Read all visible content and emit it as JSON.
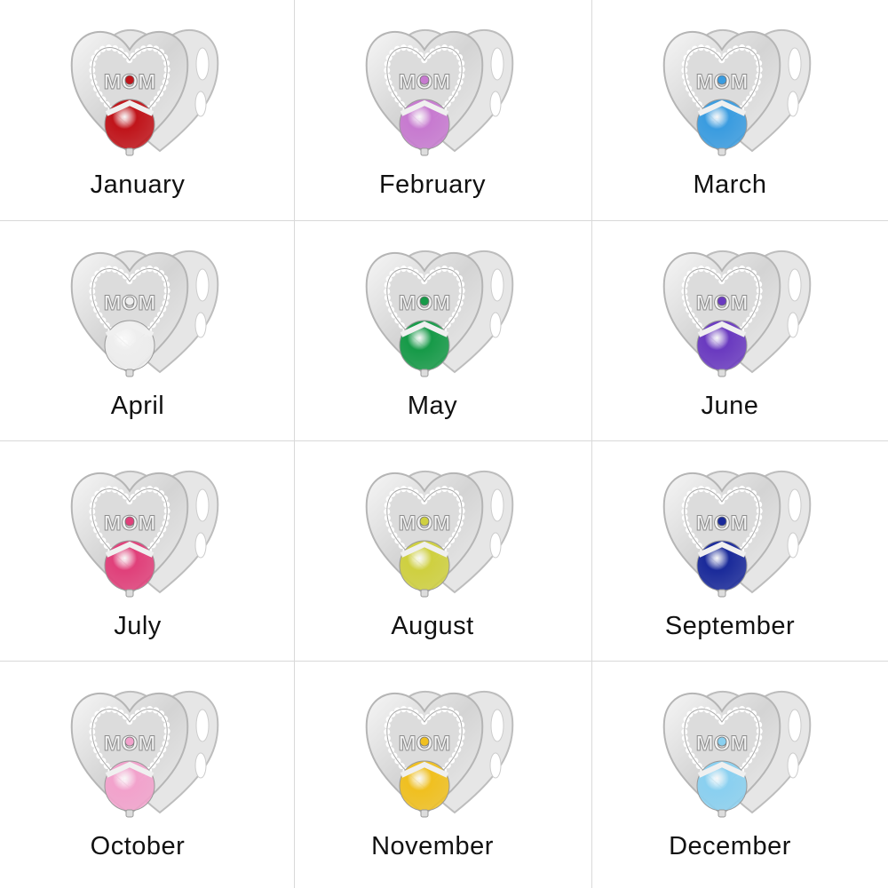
{
  "charm_engraving": "MOM",
  "months": [
    {
      "label": "January",
      "stone_color": "#c0141a"
    },
    {
      "label": "February",
      "stone_color": "#c77ad0"
    },
    {
      "label": "March",
      "stone_color": "#3a9ce0"
    },
    {
      "label": "April",
      "stone_color": "#eeeeee"
    },
    {
      "label": "May",
      "stone_color": "#169a48"
    },
    {
      "label": "June",
      "stone_color": "#6a3ac0"
    },
    {
      "label": "July",
      "stone_color": "#e0407a"
    },
    {
      "label": "August",
      "stone_color": "#cfd040"
    },
    {
      "label": "September",
      "stone_color": "#1a2a9a"
    },
    {
      "label": "October",
      "stone_color": "#f2a2cc"
    },
    {
      "label": "November",
      "stone_color": "#f0c020"
    },
    {
      "label": "December",
      "stone_color": "#8ad0f0"
    }
  ]
}
